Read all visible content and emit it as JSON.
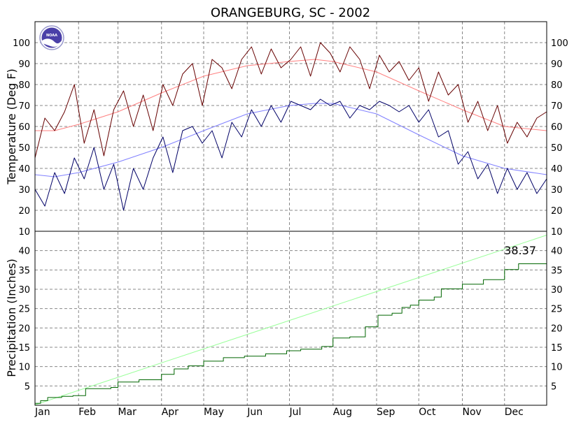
{
  "chart_data": [
    {
      "panel": "temperature",
      "type": "line",
      "title": "ORANGEBURG, SC - 2002",
      "xlabel": "",
      "ylabel": "Temperature (Deg F)",
      "ylim": [
        10,
        110
      ],
      "yticks": [
        10,
        20,
        30,
        40,
        50,
        60,
        70,
        80,
        90,
        100
      ],
      "xlim": [
        1,
        365
      ],
      "month_labels": [
        "Jan",
        "Feb",
        "Mar",
        "Apr",
        "May",
        "Jun",
        "Jul",
        "Aug",
        "Sep",
        "Oct",
        "Nov",
        "Dec"
      ],
      "month_start_days": [
        1,
        32,
        60,
        91,
        121,
        152,
        182,
        213,
        244,
        274,
        305,
        335
      ],
      "grid": true,
      "logo": "NOAA",
      "series": [
        {
          "role": "daily-high",
          "color": "#660000",
          "x": [
            1,
            8,
            15,
            22,
            29,
            36,
            43,
            50,
            57,
            64,
            71,
            78,
            85,
            92,
            99,
            106,
            113,
            120,
            127,
            134,
            141,
            148,
            155,
            162,
            169,
            176,
            183,
            190,
            197,
            204,
            211,
            218,
            225,
            232,
            239,
            246,
            253,
            260,
            267,
            274,
            281,
            288,
            295,
            302,
            309,
            316,
            323,
            330,
            337,
            344,
            351,
            358,
            365
          ],
          "values": [
            45,
            64,
            58,
            67,
            80,
            52,
            68,
            46,
            68,
            77,
            60,
            75,
            58,
            80,
            70,
            85,
            90,
            70,
            92,
            88,
            78,
            92,
            98,
            85,
            97,
            88,
            92,
            98,
            84,
            100,
            95,
            86,
            98,
            92,
            78,
            94,
            86,
            91,
            82,
            88,
            72,
            86,
            75,
            80,
            62,
            72,
            58,
            70,
            52,
            62,
            55,
            64,
            67
          ]
        },
        {
          "role": "daily-low",
          "color": "#000066",
          "x": [
            1,
            8,
            15,
            22,
            29,
            36,
            43,
            50,
            57,
            64,
            71,
            78,
            85,
            92,
            99,
            106,
            113,
            120,
            127,
            134,
            141,
            148,
            155,
            162,
            169,
            176,
            183,
            190,
            197,
            204,
            211,
            218,
            225,
            232,
            239,
            246,
            253,
            260,
            267,
            274,
            281,
            288,
            295,
            302,
            309,
            316,
            323,
            330,
            337,
            344,
            351,
            358,
            365
          ],
          "values": [
            30,
            22,
            38,
            28,
            45,
            35,
            50,
            30,
            42,
            20,
            40,
            30,
            45,
            55,
            38,
            58,
            60,
            52,
            58,
            45,
            62,
            55,
            68,
            60,
            70,
            62,
            72,
            70,
            68,
            73,
            70,
            72,
            64,
            70,
            68,
            72,
            70,
            67,
            70,
            62,
            68,
            55,
            58,
            42,
            48,
            35,
            42,
            28,
            40,
            30,
            38,
            28,
            35
          ]
        },
        {
          "role": "normal-high",
          "color": "#ff8080",
          "x": [
            1,
            15,
            32,
            60,
            91,
            121,
            152,
            182,
            200,
            213,
            244,
            274,
            305,
            335,
            365
          ],
          "values": [
            58,
            58,
            61,
            67,
            76,
            84,
            89,
            91,
            92,
            91,
            86,
            77,
            68,
            60,
            58
          ]
        },
        {
          "role": "normal-low",
          "color": "#8080ff",
          "x": [
            1,
            15,
            32,
            60,
            91,
            121,
            152,
            182,
            200,
            213,
            244,
            274,
            305,
            335,
            365
          ],
          "values": [
            37,
            36,
            38,
            43,
            50,
            58,
            66,
            70,
            71,
            71,
            66,
            56,
            46,
            40,
            37
          ]
        }
      ]
    },
    {
      "panel": "precipitation",
      "type": "line",
      "xlabel": "",
      "ylabel": "Precipitation (Inches)",
      "ylim": [
        0,
        45
      ],
      "yticks": [
        5,
        10,
        15,
        20,
        25,
        30,
        35,
        40
      ],
      "xlim": [
        1,
        365
      ],
      "grid": true,
      "total_label": "38.37",
      "series": [
        {
          "role": "cumulative-actual",
          "color": "#006600",
          "x": [
            1,
            5,
            10,
            20,
            28,
            37,
            55,
            60,
            75,
            91,
            100,
            110,
            121,
            135,
            150,
            165,
            180,
            190,
            205,
            213,
            225,
            236,
            245,
            255,
            262,
            268,
            274,
            285,
            290,
            305,
            320,
            335,
            345,
            365
          ],
          "values": [
            0.5,
            1.2,
            2.0,
            2.3,
            2.5,
            4.3,
            4.6,
            6.0,
            6.6,
            8.0,
            9.4,
            10.2,
            11.4,
            12.3,
            12.7,
            13.3,
            14.1,
            14.5,
            15.2,
            17.4,
            17.7,
            20.3,
            23.3,
            23.8,
            25.3,
            25.9,
            27.2,
            28.0,
            30.1,
            31.3,
            32.5,
            35.1,
            36.6,
            38.37
          ]
        },
        {
          "role": "cumulative-normal",
          "color": "#99ff99",
          "x": [
            1,
            365
          ],
          "values": [
            0.1,
            44.0
          ]
        }
      ]
    }
  ]
}
